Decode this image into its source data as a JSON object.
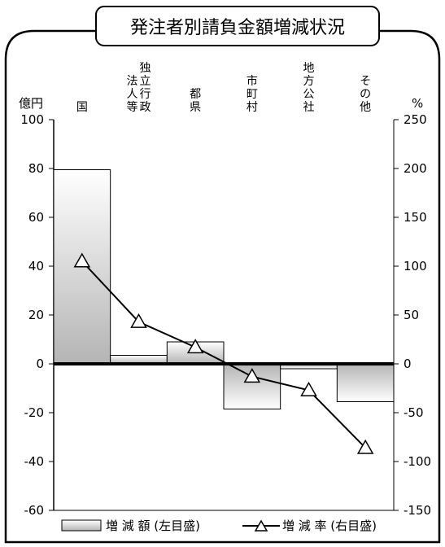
{
  "chart_data": {
    "type": "bar",
    "title": "発注者別請負金額増減状況",
    "y_left_unit": "億円",
    "y_right_unit": "%",
    "categories": [
      {
        "label": "国",
        "lines": [
          "国"
        ]
      },
      {
        "label": "独立行政法人等",
        "lines": [
          "独立行政",
          "法人等"
        ]
      },
      {
        "label": "都県",
        "lines": [
          "都県"
        ]
      },
      {
        "label": "市町村",
        "lines": [
          "市町村"
        ]
      },
      {
        "label": "地方公社",
        "lines": [
          "地方公社"
        ]
      },
      {
        "label": "その他",
        "lines": [
          "その他"
        ]
      }
    ],
    "series": [
      {
        "name": "増 減 額 (左目盛)",
        "type": "bar",
        "axis": "left",
        "values": [
          79.5,
          3.5,
          9,
          -18.5,
          -2,
          -15.5
        ]
      },
      {
        "name": "増 減 率 (右目盛)",
        "type": "line",
        "axis": "right",
        "marker": "triangle",
        "values": [
          105,
          43,
          17,
          -13,
          -27,
          -86
        ]
      }
    ],
    "ylim_left": [
      -60,
      100
    ],
    "ylim_right": [
      -150,
      250
    ],
    "yticks_left": [
      "100",
      "80",
      "60",
      "40",
      "20",
      "0",
      "-20",
      "-40",
      "-60"
    ],
    "yticks_right": [
      "250",
      "200",
      "150",
      "100",
      "50",
      "0",
      "-50",
      "-100",
      "-150"
    ],
    "grid": false,
    "legend_position": "bottom"
  }
}
